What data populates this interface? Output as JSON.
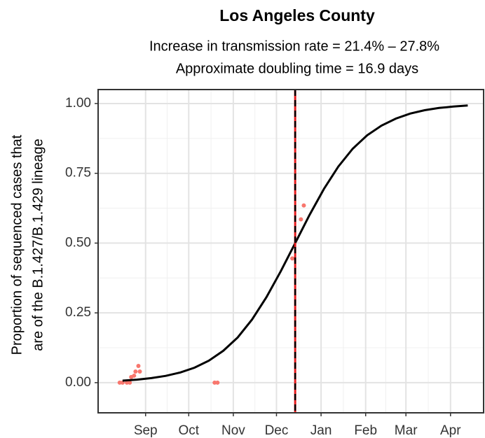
{
  "chart_data": {
    "type": "scatter",
    "title": "Los Angeles County",
    "subtitle": [
      "Increase in transmission rate = 21.4% – 27.8%",
      "Approximate doubling time = 16.9 days"
    ],
    "y_label": [
      "Proportion of sequenced cases that",
      "are of the B.1.427/B.1.429 lineage"
    ],
    "xlim": [
      -2,
      266
    ],
    "ylim": [
      -0.108,
      1.05
    ],
    "xticks": [
      {
        "value": 31,
        "label": "Sep"
      },
      {
        "value": 61,
        "label": "Oct"
      },
      {
        "value": 92,
        "label": "Nov"
      },
      {
        "value": 122,
        "label": "Dec"
      },
      {
        "value": 153,
        "label": "Jan"
      },
      {
        "value": 184,
        "label": "Feb"
      },
      {
        "value": 212,
        "label": "Mar"
      },
      {
        "value": 243,
        "label": "Apr"
      }
    ],
    "yticks": [
      {
        "value": 0,
        "label": "0.00"
      },
      {
        "value": 0.25,
        "label": "0.25"
      },
      {
        "value": 0.5,
        "label": "0.50"
      },
      {
        "value": 0.75,
        "label": "0.75"
      },
      {
        "value": 1,
        "label": "1.00"
      }
    ],
    "grid": true,
    "points": {
      "color": "#f8766d",
      "x": [
        13,
        15,
        18,
        20,
        21,
        23,
        24,
        26,
        27,
        79,
        81,
        133,
        139,
        141
      ],
      "y": [
        0,
        0,
        0,
        0,
        0.02,
        0.025,
        0.04,
        0.06,
        0.04,
        0,
        0,
        0.445,
        0.585,
        0.635
      ]
    },
    "curve": {
      "color": "#000000",
      "x": [
        15,
        25,
        35,
        45,
        55,
        65,
        75,
        85,
        95,
        105,
        115,
        125,
        135,
        145,
        155,
        165,
        175,
        185,
        195,
        205,
        215,
        225,
        235,
        245,
        255
      ],
      "y": [
        0.0072,
        0.0109,
        0.0163,
        0.0244,
        0.0363,
        0.0537,
        0.0787,
        0.114,
        0.162,
        0.226,
        0.306,
        0.399,
        0.5,
        0.601,
        0.694,
        0.774,
        0.838,
        0.886,
        0.921,
        0.946,
        0.964,
        0.976,
        0.984,
        0.989,
        0.993
      ]
    },
    "vline": {
      "x": 135,
      "color": "#e41a1c"
    }
  }
}
